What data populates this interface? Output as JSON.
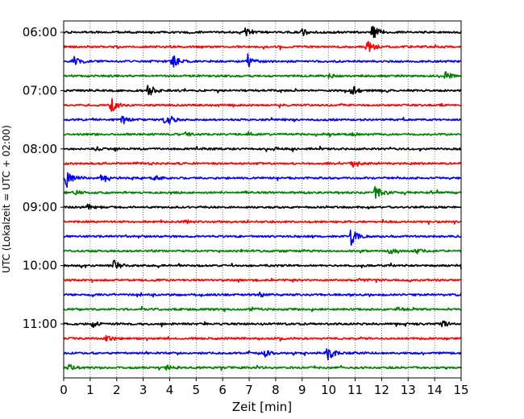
{
  "chart_data": {
    "type": "line",
    "title": "",
    "xlabel": "Zeit  [min]",
    "ylabel": "UTC (Lokalzeit = UTC + 02:00)",
    "xlim": [
      0,
      15
    ],
    "x_ticks": [
      "0",
      "1",
      "2",
      "3",
      "4",
      "5",
      "6",
      "7",
      "8",
      "9",
      "10",
      "11",
      "12",
      "13",
      "14",
      "15"
    ],
    "y_tick_labels": [
      "06:00",
      "07:00",
      "08:00",
      "09:00",
      "10:00",
      "11:00"
    ],
    "trace_interval_min": 15,
    "start_time": "06:00",
    "grid": "vertical dotted lines at each minute",
    "colors_cycle": [
      "#000000",
      "#ff0000",
      "#0000ff",
      "#008000"
    ],
    "series": [
      {
        "start": "06:00",
        "color": "#000000",
        "events": [
          [
            11.65,
            10
          ],
          [
            6.85,
            5
          ],
          [
            9.0,
            4
          ]
        ]
      },
      {
        "start": "06:15",
        "color": "#ff0000",
        "events": [
          [
            11.45,
            9
          ]
        ]
      },
      {
        "start": "06:30",
        "color": "#0000ff",
        "events": [
          [
            0.4,
            6
          ],
          [
            4.1,
            9
          ],
          [
            6.95,
            9
          ]
        ]
      },
      {
        "start": "06:45",
        "color": "#008000",
        "events": [
          [
            14.4,
            5
          ],
          [
            10.0,
            2
          ]
        ]
      },
      {
        "start": "07:00",
        "color": "#000000",
        "events": [
          [
            3.2,
            8
          ],
          [
            10.85,
            8
          ]
        ]
      },
      {
        "start": "07:15",
        "color": "#ff0000",
        "events": [
          [
            1.8,
            10
          ]
        ]
      },
      {
        "start": "07:30",
        "color": "#0000ff",
        "events": [
          [
            2.2,
            6
          ],
          [
            3.8,
            3
          ],
          [
            4.0,
            4
          ]
        ]
      },
      {
        "start": "07:45",
        "color": "#008000",
        "events": [
          [
            4.6,
            2
          ],
          [
            10.9,
            2
          ]
        ]
      },
      {
        "start": "08:00",
        "color": "#000000",
        "events": [
          [
            1.2,
            2
          ],
          [
            5.0,
            2
          ],
          [
            8.0,
            2
          ]
        ]
      },
      {
        "start": "08:15",
        "color": "#ff0000",
        "events": [
          [
            10.9,
            4
          ]
        ]
      },
      {
        "start": "08:30",
        "color": "#0000ff",
        "events": [
          [
            0.1,
            12
          ],
          [
            1.4,
            3
          ],
          [
            3.4,
            3
          ]
        ]
      },
      {
        "start": "08:45",
        "color": "#008000",
        "events": [
          [
            11.75,
            10
          ],
          [
            0.4,
            3
          ]
        ]
      },
      {
        "start": "09:00",
        "color": "#000000",
        "events": [
          [
            0.9,
            4
          ]
        ]
      },
      {
        "start": "09:15",
        "color": "#ff0000",
        "events": [
          [
            4.6,
            2
          ]
        ]
      },
      {
        "start": "09:30",
        "color": "#0000ff",
        "events": [
          [
            10.85,
            10
          ]
        ]
      },
      {
        "start": "09:45",
        "color": "#008000",
        "events": [
          [
            12.3,
            3
          ],
          [
            13.3,
            3
          ]
        ]
      },
      {
        "start": "10:00",
        "color": "#000000",
        "events": [
          [
            1.9,
            7
          ],
          [
            15.0,
            4
          ]
        ]
      },
      {
        "start": "10:15",
        "color": "#ff0000",
        "events": [
          [
            11.2,
            2
          ]
        ]
      },
      {
        "start": "10:30",
        "color": "#0000ff",
        "events": [
          [
            7.4,
            2
          ]
        ]
      },
      {
        "start": "10:45",
        "color": "#008000",
        "events": [
          [
            7.0,
            3
          ],
          [
            12.6,
            2
          ]
        ]
      },
      {
        "start": "11:00",
        "color": "#000000",
        "events": [
          [
            1.1,
            4
          ],
          [
            14.3,
            4
          ]
        ]
      },
      {
        "start": "11:15",
        "color": "#ff0000",
        "events": [
          [
            1.6,
            4
          ]
        ]
      },
      {
        "start": "11:30",
        "color": "#0000ff",
        "events": [
          [
            9.95,
            11
          ],
          [
            7.55,
            5
          ]
        ]
      },
      {
        "start": "11:45",
        "color": "#008000",
        "events": [
          [
            0.2,
            4
          ],
          [
            3.9,
            3
          ]
        ]
      }
    ]
  }
}
